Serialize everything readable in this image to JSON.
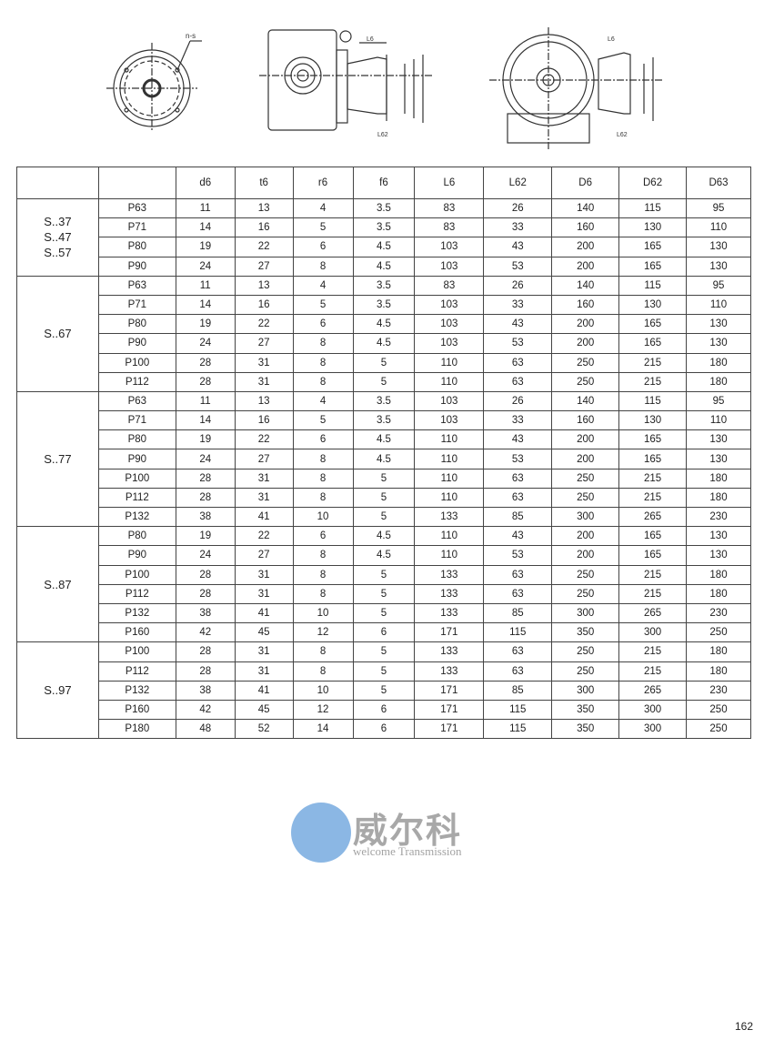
{
  "drawings": {
    "flange_label": "n-s",
    "dims": [
      "f6",
      "t6",
      "d6",
      "L6",
      "L62",
      "D63",
      "D62",
      "D6"
    ]
  },
  "table": {
    "headers": [
      "",
      "",
      "d6",
      "t6",
      "r6",
      "f6",
      "L6",
      "L62",
      "D6",
      "D62",
      "D63"
    ],
    "groups": [
      {
        "name": [
          "S..37",
          "S..47",
          "S..57"
        ],
        "rows": [
          [
            "P63",
            "11",
            "13",
            "4",
            "3.5",
            "83",
            "26",
            "140",
            "115",
            "95"
          ],
          [
            "P71",
            "14",
            "16",
            "5",
            "3.5",
            "83",
            "33",
            "160",
            "130",
            "110"
          ],
          [
            "P80",
            "19",
            "22",
            "6",
            "4.5",
            "103",
            "43",
            "200",
            "165",
            "130"
          ],
          [
            "P90",
            "24",
            "27",
            "8",
            "4.5",
            "103",
            "53",
            "200",
            "165",
            "130"
          ]
        ]
      },
      {
        "name": [
          "S..67"
        ],
        "rows": [
          [
            "P63",
            "11",
            "13",
            "4",
            "3.5",
            "83",
            "26",
            "140",
            "115",
            "95"
          ],
          [
            "P71",
            "14",
            "16",
            "5",
            "3.5",
            "103",
            "33",
            "160",
            "130",
            "110"
          ],
          [
            "P80",
            "19",
            "22",
            "6",
            "4.5",
            "103",
            "43",
            "200",
            "165",
            "130"
          ],
          [
            "P90",
            "24",
            "27",
            "8",
            "4.5",
            "103",
            "53",
            "200",
            "165",
            "130"
          ],
          [
            "P100",
            "28",
            "31",
            "8",
            "5",
            "110",
            "63",
            "250",
            "215",
            "180"
          ],
          [
            "P112",
            "28",
            "31",
            "8",
            "5",
            "110",
            "63",
            "250",
            "215",
            "180"
          ]
        ]
      },
      {
        "name": [
          "S..77"
        ],
        "rows": [
          [
            "P63",
            "11",
            "13",
            "4",
            "3.5",
            "103",
            "26",
            "140",
            "115",
            "95"
          ],
          [
            "P71",
            "14",
            "16",
            "5",
            "3.5",
            "103",
            "33",
            "160",
            "130",
            "110"
          ],
          [
            "P80",
            "19",
            "22",
            "6",
            "4.5",
            "110",
            "43",
            "200",
            "165",
            "130"
          ],
          [
            "P90",
            "24",
            "27",
            "8",
            "4.5",
            "110",
            "53",
            "200",
            "165",
            "130"
          ],
          [
            "P100",
            "28",
            "31",
            "8",
            "5",
            "110",
            "63",
            "250",
            "215",
            "180"
          ],
          [
            "P112",
            "28",
            "31",
            "8",
            "5",
            "110",
            "63",
            "250",
            "215",
            "180"
          ],
          [
            "P132",
            "38",
            "41",
            "10",
            "5",
            "133",
            "85",
            "300",
            "265",
            "230"
          ]
        ]
      },
      {
        "name": [
          "S..87"
        ],
        "rows": [
          [
            "P80",
            "19",
            "22",
            "6",
            "4.5",
            "110",
            "43",
            "200",
            "165",
            "130"
          ],
          [
            "P90",
            "24",
            "27",
            "8",
            "4.5",
            "110",
            "53",
            "200",
            "165",
            "130"
          ],
          [
            "P100",
            "28",
            "31",
            "8",
            "5",
            "133",
            "63",
            "250",
            "215",
            "180"
          ],
          [
            "P112",
            "28",
            "31",
            "8",
            "5",
            "133",
            "63",
            "250",
            "215",
            "180"
          ],
          [
            "P132",
            "38",
            "41",
            "10",
            "5",
            "133",
            "85",
            "300",
            "265",
            "230"
          ],
          [
            "P160",
            "42",
            "45",
            "12",
            "6",
            "171",
            "115",
            "350",
            "300",
            "250"
          ]
        ]
      },
      {
        "name": [
          "S..97"
        ],
        "rows": [
          [
            "P100",
            "28",
            "31",
            "8",
            "5",
            "133",
            "63",
            "250",
            "215",
            "180"
          ],
          [
            "P112",
            "28",
            "31",
            "8",
            "5",
            "133",
            "63",
            "250",
            "215",
            "180"
          ],
          [
            "P132",
            "38",
            "41",
            "10",
            "5",
            "171",
            "85",
            "300",
            "265",
            "230"
          ],
          [
            "P160",
            "42",
            "45",
            "12",
            "6",
            "171",
            "115",
            "350",
            "300",
            "250"
          ],
          [
            "P180",
            "48",
            "52",
            "14",
            "6",
            "171",
            "115",
            "350",
            "300",
            "250"
          ]
        ]
      }
    ]
  },
  "watermark": {
    "brand": "威尔科",
    "sub": "welcome Transmission",
    "color": "#4a8fd6"
  },
  "page_number": "162"
}
